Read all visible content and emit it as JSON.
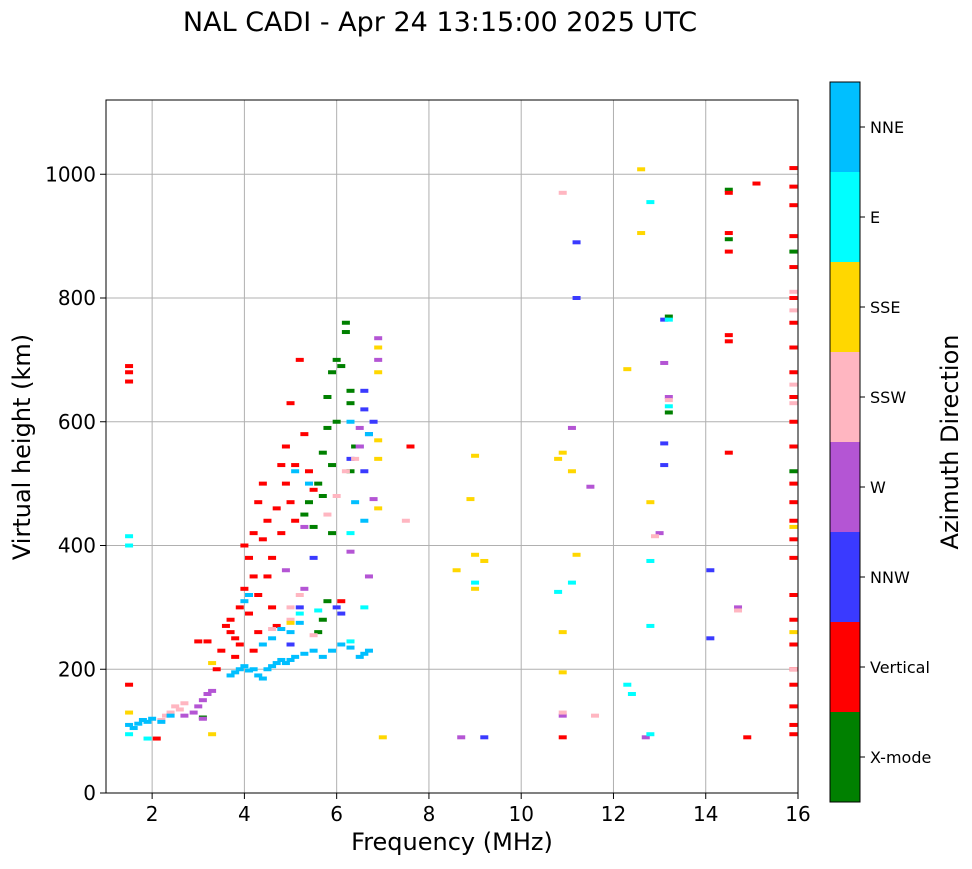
{
  "chart_data": {
    "type": "scatter",
    "title": "NAL CADI - Apr 24 13:15:00 2025 UTC",
    "xlabel": "Frequency (MHz)",
    "ylabel": "Virtual height (km)",
    "xlim": [
      1,
      16
    ],
    "ylim": [
      0,
      1120
    ],
    "xticks": [
      2,
      4,
      6,
      8,
      10,
      12,
      14,
      16
    ],
    "yticks": [
      0,
      200,
      400,
      600,
      800,
      1000
    ],
    "grid": true,
    "colorbar": {
      "label": "Azimuth Direction",
      "categories": [
        {
          "name": "X-mode",
          "color": "#008000"
        },
        {
          "name": "Vertical",
          "color": "#ff0000"
        },
        {
          "name": "NNW",
          "color": "#3a3aff"
        },
        {
          "name": "W",
          "color": "#b455d4"
        },
        {
          "name": "SSW",
          "color": "#ffb6c1"
        },
        {
          "name": "SSE",
          "color": "#ffd700"
        },
        {
          "name": "E",
          "color": "#00ffff"
        },
        {
          "name": "NNE",
          "color": "#00bfff"
        }
      ]
    },
    "series": [
      {
        "name": "X-mode",
        "points": [
          [
            6.2,
            760
          ],
          [
            6.2,
            745
          ],
          [
            6.0,
            700
          ],
          [
            5.9,
            680
          ],
          [
            6.1,
            690
          ],
          [
            6.3,
            650
          ],
          [
            6.3,
            630
          ],
          [
            6.0,
            600
          ],
          [
            5.8,
            590
          ],
          [
            6.4,
            560
          ],
          [
            5.7,
            550
          ],
          [
            5.9,
            530
          ],
          [
            5.6,
            500
          ],
          [
            5.7,
            480
          ],
          [
            5.5,
            430
          ],
          [
            5.9,
            420
          ],
          [
            5.4,
            470
          ],
          [
            5.3,
            450
          ],
          [
            5.8,
            310
          ],
          [
            5.7,
            280
          ],
          [
            5.6,
            260
          ],
          [
            13.2,
            770
          ],
          [
            13.2,
            615
          ],
          [
            14.5,
            895
          ],
          [
            14.5,
            975
          ],
          [
            15.9,
            875
          ],
          [
            15.9,
            520
          ],
          [
            3.1,
            122
          ],
          [
            6.3,
            520
          ],
          [
            5.8,
            640
          ]
        ]
      },
      {
        "name": "Vertical",
        "points": [
          [
            1.5,
            175
          ],
          [
            1.5,
            665
          ],
          [
            1.5,
            680
          ],
          [
            1.5,
            690
          ],
          [
            2.1,
            88
          ],
          [
            3.0,
            245
          ],
          [
            3.2,
            245
          ],
          [
            3.4,
            200
          ],
          [
            3.5,
            230
          ],
          [
            3.7,
            260
          ],
          [
            3.8,
            220
          ],
          [
            3.9,
            300
          ],
          [
            4.0,
            330
          ],
          [
            4.1,
            380
          ],
          [
            4.2,
            420
          ],
          [
            4.3,
            470
          ],
          [
            4.4,
            500
          ],
          [
            4.5,
            440
          ],
          [
            4.2,
            350
          ],
          [
            4.3,
            320
          ],
          [
            4.5,
            350
          ],
          [
            4.6,
            300
          ],
          [
            4.7,
            270
          ],
          [
            4.1,
            290
          ],
          [
            4.3,
            260
          ],
          [
            3.9,
            240
          ],
          [
            3.6,
            270
          ],
          [
            3.7,
            280
          ],
          [
            4.6,
            380
          ],
          [
            4.8,
            420
          ],
          [
            4.7,
            460
          ],
          [
            4.9,
            500
          ],
          [
            5.0,
            470
          ],
          [
            5.1,
            530
          ],
          [
            4.8,
            530
          ],
          [
            4.9,
            560
          ],
          [
            5.0,
            630
          ],
          [
            5.2,
            700
          ],
          [
            5.3,
            580
          ],
          [
            5.1,
            440
          ],
          [
            5.4,
            520
          ],
          [
            5.5,
            490
          ],
          [
            4.4,
            410
          ],
          [
            4.0,
            400
          ],
          [
            3.8,
            250
          ],
          [
            4.2,
            230
          ],
          [
            6.1,
            310
          ],
          [
            7.6,
            560
          ],
          [
            10.9,
            90
          ],
          [
            14.5,
            550
          ],
          [
            14.5,
            875
          ],
          [
            14.5,
            905
          ],
          [
            14.5,
            740
          ],
          [
            14.5,
            730
          ],
          [
            14.9,
            90
          ],
          [
            15.1,
            985
          ],
          [
            14.5,
            970
          ],
          [
            15.9,
            1010
          ],
          [
            15.9,
            980
          ],
          [
            15.9,
            950
          ],
          [
            15.9,
            900
          ],
          [
            15.9,
            850
          ],
          [
            15.9,
            800
          ],
          [
            15.9,
            760
          ],
          [
            15.9,
            720
          ],
          [
            15.9,
            680
          ],
          [
            15.9,
            640
          ],
          [
            15.9,
            600
          ],
          [
            15.9,
            560
          ],
          [
            15.9,
            500
          ],
          [
            15.9,
            470
          ],
          [
            15.9,
            440
          ],
          [
            15.9,
            410
          ],
          [
            15.9,
            380
          ],
          [
            15.9,
            320
          ],
          [
            15.9,
            280
          ],
          [
            15.9,
            240
          ],
          [
            15.9,
            200
          ],
          [
            15.9,
            175
          ],
          [
            15.9,
            140
          ],
          [
            15.9,
            110
          ],
          [
            15.9,
            95
          ]
        ]
      },
      {
        "name": "NNW",
        "points": [
          [
            5.5,
            380
          ],
          [
            5.2,
            300
          ],
          [
            6.0,
            300
          ],
          [
            6.6,
            620
          ],
          [
            6.6,
            650
          ],
          [
            6.7,
            580
          ],
          [
            6.8,
            600
          ],
          [
            6.5,
            560
          ],
          [
            6.6,
            520
          ],
          [
            6.3,
            540
          ],
          [
            6.1,
            290
          ],
          [
            9.2,
            90
          ],
          [
            11.2,
            890
          ],
          [
            11.2,
            800
          ],
          [
            13.1,
            530
          ],
          [
            13.1,
            565
          ],
          [
            13.1,
            765
          ],
          [
            14.1,
            360
          ],
          [
            14.1,
            250
          ],
          [
            5.0,
            240
          ]
        ]
      },
      {
        "name": "W",
        "points": [
          [
            3.0,
            140
          ],
          [
            3.1,
            150
          ],
          [
            3.2,
            160
          ],
          [
            2.9,
            130
          ],
          [
            3.1,
            120
          ],
          [
            3.3,
            165
          ],
          [
            2.7,
            125
          ],
          [
            4.9,
            360
          ],
          [
            5.3,
            430
          ],
          [
            5.3,
            330
          ],
          [
            6.5,
            590
          ],
          [
            6.5,
            560
          ],
          [
            6.9,
            735
          ],
          [
            6.9,
            700
          ],
          [
            6.7,
            350
          ],
          [
            6.3,
            390
          ],
          [
            6.8,
            475
          ],
          [
            8.7,
            90
          ],
          [
            10.9,
            125
          ],
          [
            11.1,
            590
          ],
          [
            11.5,
            495
          ],
          [
            12.7,
            90
          ],
          [
            13.0,
            420
          ],
          [
            13.1,
            695
          ],
          [
            13.2,
            640
          ],
          [
            14.7,
            300
          ]
        ]
      },
      {
        "name": "SSW",
        "points": [
          [
            2.2,
            118
          ],
          [
            2.3,
            125
          ],
          [
            2.4,
            130
          ],
          [
            2.5,
            140
          ],
          [
            2.6,
            135
          ],
          [
            2.7,
            145
          ],
          [
            5.0,
            300
          ],
          [
            5.2,
            320
          ],
          [
            5.0,
            280
          ],
          [
            4.6,
            265
          ],
          [
            5.8,
            450
          ],
          [
            6.0,
            480
          ],
          [
            6.4,
            540
          ],
          [
            6.2,
            520
          ],
          [
            7.5,
            440
          ],
          [
            10.9,
            970
          ],
          [
            10.9,
            130
          ],
          [
            11.6,
            125
          ],
          [
            12.9,
            415
          ],
          [
            13.2,
            635
          ],
          [
            14.7,
            295
          ],
          [
            15.9,
            810
          ],
          [
            15.9,
            780
          ],
          [
            15.9,
            660
          ],
          [
            15.9,
            630
          ],
          [
            15.9,
            200
          ],
          [
            5.5,
            255
          ]
        ]
      },
      {
        "name": "SSE",
        "points": [
          [
            1.5,
            130
          ],
          [
            3.3,
            95
          ],
          [
            3.3,
            210
          ],
          [
            5.0,
            275
          ],
          [
            6.9,
            720
          ],
          [
            6.9,
            680
          ],
          [
            6.9,
            570
          ],
          [
            6.9,
            540
          ],
          [
            6.9,
            460
          ],
          [
            7.0,
            90
          ],
          [
            8.6,
            360
          ],
          [
            8.9,
            475
          ],
          [
            9.0,
            545
          ],
          [
            9.0,
            385
          ],
          [
            9.0,
            330
          ],
          [
            9.2,
            375
          ],
          [
            10.8,
            540
          ],
          [
            10.9,
            550
          ],
          [
            10.9,
            260
          ],
          [
            10.9,
            195
          ],
          [
            11.1,
            520
          ],
          [
            11.2,
            385
          ],
          [
            12.3,
            685
          ],
          [
            12.6,
            1008
          ],
          [
            12.6,
            905
          ],
          [
            12.8,
            470
          ],
          [
            15.9,
            430
          ],
          [
            15.9,
            260
          ]
        ]
      },
      {
        "name": "E",
        "points": [
          [
            1.5,
            415
          ],
          [
            1.5,
            400
          ],
          [
            1.5,
            95
          ],
          [
            1.9,
            88
          ],
          [
            5.2,
            290
          ],
          [
            5.6,
            295
          ],
          [
            6.3,
            245
          ],
          [
            6.3,
            420
          ],
          [
            6.6,
            300
          ],
          [
            9.0,
            340
          ],
          [
            10.8,
            325
          ],
          [
            11.1,
            340
          ],
          [
            12.3,
            175
          ],
          [
            12.4,
            160
          ],
          [
            12.8,
            955
          ],
          [
            12.8,
            375
          ],
          [
            12.8,
            270
          ],
          [
            12.8,
            95
          ],
          [
            13.2,
            625
          ],
          [
            13.2,
            765
          ]
        ]
      },
      {
        "name": "NNE",
        "points": [
          [
            1.5,
            110
          ],
          [
            1.6,
            105
          ],
          [
            1.7,
            112
          ],
          [
            1.8,
            118
          ],
          [
            1.9,
            115
          ],
          [
            2.0,
            120
          ],
          [
            2.2,
            115
          ],
          [
            2.4,
            125
          ],
          [
            3.7,
            190
          ],
          [
            3.8,
            195
          ],
          [
            3.9,
            200
          ],
          [
            4.0,
            205
          ],
          [
            4.1,
            198
          ],
          [
            4.2,
            200
          ],
          [
            4.3,
            190
          ],
          [
            4.4,
            185
          ],
          [
            4.5,
            200
          ],
          [
            4.6,
            205
          ],
          [
            4.7,
            210
          ],
          [
            4.8,
            215
          ],
          [
            4.9,
            210
          ],
          [
            5.0,
            215
          ],
          [
            5.1,
            220
          ],
          [
            5.3,
            225
          ],
          [
            5.5,
            230
          ],
          [
            5.7,
            220
          ],
          [
            5.9,
            230
          ],
          [
            6.1,
            240
          ],
          [
            6.3,
            235
          ],
          [
            6.5,
            220
          ],
          [
            6.6,
            225
          ],
          [
            6.7,
            230
          ],
          [
            4.4,
            240
          ],
          [
            4.6,
            250
          ],
          [
            4.8,
            265
          ],
          [
            5.0,
            260
          ],
          [
            5.2,
            275
          ],
          [
            4.0,
            310
          ],
          [
            4.1,
            320
          ],
          [
            5.1,
            520
          ],
          [
            5.4,
            500
          ],
          [
            6.4,
            470
          ],
          [
            6.6,
            440
          ],
          [
            6.3,
            600
          ],
          [
            6.7,
            580
          ]
        ]
      }
    ]
  }
}
